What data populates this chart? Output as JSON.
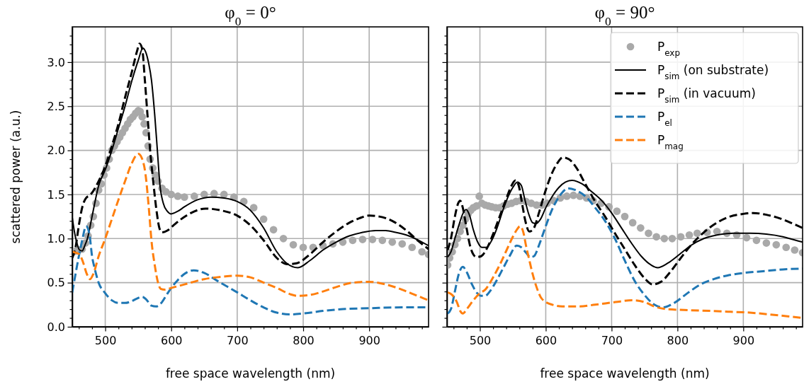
{
  "chart_data": [
    {
      "type": "line",
      "title": "φ$_{0}$ = 0°",
      "xlabel": "free space wavelength (nm)",
      "ylabel": "scattered power (a.u.)",
      "xlim": [
        450,
        990
      ],
      "ylim": [
        0,
        3.4
      ],
      "xticks": [
        {
          "value": 460,
          "label": null
        },
        {
          "value": 480,
          "label": null
        },
        500,
        {
          "value": 520,
          "label": null
        },
        {
          "value": 540,
          "label": null
        },
        {
          "value": 560,
          "label": null
        },
        {
          "value": 580,
          "label": null
        },
        600,
        {
          "value": 620,
          "label": null
        },
        {
          "value": 640,
          "label": null
        },
        {
          "value": 660,
          "label": null
        },
        {
          "value": 680,
          "label": null
        },
        700,
        {
          "value": 720,
          "label": null
        },
        {
          "value": 740,
          "label": null
        },
        {
          "value": 760,
          "label": null
        },
        {
          "value": 780,
          "label": null
        },
        800,
        {
          "value": 820,
          "label": null
        },
        {
          "value": 840,
          "label": null
        },
        {
          "value": 860,
          "label": null
        },
        {
          "value": 880,
          "label": null
        },
        900,
        {
          "value": 920,
          "label": null
        },
        {
          "value": 940,
          "label": null
        },
        {
          "value": 960,
          "label": null
        },
        {
          "value": 980,
          "label": null
        }
      ],
      "yticks": [
        {
          "value": 0,
          "label": "0.0"
        },
        {
          "value": 0.1,
          "label": null
        },
        {
          "value": 0.2,
          "label": null
        },
        {
          "value": 0.3,
          "label": null
        },
        {
          "value": 0.4,
          "label": null
        },
        0.5,
        {
          "value": 0.6,
          "label": null
        },
        {
          "value": 0.7,
          "label": null
        },
        {
          "value": 0.8,
          "label": null
        },
        {
          "value": 0.9,
          "label": null
        },
        {
          "value": 1,
          "label": "1.0"
        },
        {
          "value": 1.1,
          "label": null
        },
        {
          "value": 1.2,
          "label": null
        },
        {
          "value": 1.3,
          "label": null
        },
        {
          "value": 1.4,
          "label": null
        },
        1.5,
        {
          "value": 1.6,
          "label": null
        },
        {
          "value": 1.7,
          "label": null
        },
        {
          "value": 1.8,
          "label": null
        },
        {
          "value": 1.9,
          "label": null
        },
        {
          "value": 2,
          "label": "2.0"
        },
        {
          "value": 2.1,
          "label": null
        },
        {
          "value": 2.2,
          "label": null
        },
        {
          "value": 2.3,
          "label": null
        },
        {
          "value": 2.4,
          "label": null
        },
        2.5,
        {
          "value": 2.6,
          "label": null
        },
        {
          "value": 2.7,
          "label": null
        },
        {
          "value": 2.8,
          "label": null
        },
        {
          "value": 2.9,
          "label": null
        },
        {
          "value": 3,
          "label": "3.0"
        },
        {
          "value": 3.1,
          "label": null
        },
        {
          "value": 3.2,
          "label": null
        },
        {
          "value": 3.3,
          "label": null
        }
      ],
      "grid": true,
      "legend": false,
      "series": [
        {
          "type": "scatter",
          "marker": "circle",
          "color": "#a9a9a9",
          "x": [
            452,
            456,
            460,
            465,
            470,
            474,
            478,
            482,
            486,
            490,
            494,
            498,
            502,
            506,
            510,
            514,
            518,
            522,
            526,
            530,
            534,
            538,
            542,
            546,
            550,
            553,
            556,
            559,
            562,
            565,
            568,
            572,
            576,
            580,
            586,
            592,
            600,
            610,
            620,
            635,
            650,
            665,
            680,
            695,
            710,
            725,
            740,
            755,
            770,
            785,
            800,
            815,
            830,
            845,
            860,
            875,
            890,
            905,
            920,
            935,
            950,
            965,
            980,
            990
          ],
          "values": [
            0.85,
            0.86,
            0.87,
            0.88,
            0.95,
            1.03,
            1.15,
            1.25,
            1.4,
            1.55,
            1.62,
            1.72,
            1.8,
            1.9,
            2.0,
            2.05,
            2.1,
            2.15,
            2.2,
            2.25,
            2.3,
            2.35,
            2.38,
            2.42,
            2.45,
            2.44,
            2.38,
            2.3,
            2.2,
            2.05,
            1.9,
            1.8,
            1.72,
            1.65,
            1.57,
            1.53,
            1.5,
            1.48,
            1.47,
            1.48,
            1.5,
            1.51,
            1.5,
            1.47,
            1.42,
            1.35,
            1.22,
            1.1,
            1.0,
            0.93,
            0.9,
            0.9,
            0.92,
            0.94,
            0.96,
            0.98,
            0.99,
            0.99,
            0.98,
            0.96,
            0.94,
            0.9,
            0.85,
            0.82
          ]
        },
        {
          "type": "line",
          "line_style": "solid",
          "color": "#000000",
          "x": [
            450,
            453,
            457,
            461,
            465,
            469,
            473,
            480,
            490,
            500,
            510,
            520,
            530,
            540,
            550,
            557,
            562,
            566,
            570,
            575,
            579,
            583,
            588,
            594,
            600,
            610,
            620,
            640,
            660,
            680,
            700,
            720,
            740,
            760,
            775,
            792,
            810,
            830,
            850,
            870,
            890,
            910,
            925,
            940,
            960,
            975,
            990
          ],
          "values": [
            1.24,
            1.09,
            0.95,
            0.87,
            0.86,
            0.92,
            1.0,
            1.25,
            1.6,
            1.78,
            2.0,
            2.25,
            2.5,
            2.78,
            3.02,
            3.16,
            3.1,
            2.98,
            2.8,
            2.4,
            2.0,
            1.6,
            1.4,
            1.31,
            1.28,
            1.31,
            1.36,
            1.44,
            1.47,
            1.46,
            1.42,
            1.32,
            1.12,
            0.85,
            0.72,
            0.67,
            0.75,
            0.87,
            0.96,
            1.03,
            1.07,
            1.09,
            1.09,
            1.07,
            1.03,
            0.98,
            0.92
          ]
        },
        {
          "type": "line",
          "line_style": "dashed",
          "color": "#000000",
          "x": [
            450,
            455,
            460,
            465,
            470,
            478,
            490,
            500,
            510,
            520,
            530,
            540,
            548,
            552,
            556,
            560,
            564,
            568,
            572,
            578,
            582,
            586,
            594,
            602,
            615,
            630,
            652,
            675,
            700,
            720,
            740,
            760,
            776,
            790,
            810,
            830,
            850,
            870,
            885,
            900,
            915,
            935,
            955,
            975,
            990
          ],
          "values": [
            0.78,
            0.9,
            1.15,
            1.35,
            1.45,
            1.5,
            1.65,
            1.82,
            2.05,
            2.3,
            2.6,
            2.88,
            3.12,
            3.21,
            3.15,
            2.8,
            2.4,
            2.0,
            1.7,
            1.3,
            1.12,
            1.07,
            1.09,
            1.14,
            1.22,
            1.29,
            1.34,
            1.32,
            1.26,
            1.15,
            0.98,
            0.78,
            0.71,
            0.72,
            0.82,
            0.96,
            1.08,
            1.18,
            1.23,
            1.26,
            1.25,
            1.2,
            1.1,
            0.97,
            0.88
          ]
        },
        {
          "type": "line",
          "line_style": "dashed",
          "color": "#1f77b4",
          "x": [
            450,
            455,
            460,
            465,
            471,
            476,
            480,
            484,
            490,
            500,
            510,
            520,
            530,
            540,
            548,
            556,
            562,
            570,
            577,
            585,
            592,
            600,
            610,
            620,
            634,
            650,
            670,
            700,
            720,
            740,
            760,
            781,
            800,
            830,
            860,
            900,
            950,
            990
          ],
          "values": [
            0.39,
            0.6,
            0.8,
            0.98,
            1.14,
            1.05,
            0.8,
            0.66,
            0.5,
            0.38,
            0.3,
            0.27,
            0.27,
            0.29,
            0.32,
            0.34,
            0.31,
            0.24,
            0.23,
            0.27,
            0.35,
            0.44,
            0.53,
            0.6,
            0.64,
            0.61,
            0.52,
            0.39,
            0.3,
            0.22,
            0.16,
            0.14,
            0.15,
            0.18,
            0.2,
            0.21,
            0.22,
            0.22
          ]
        },
        {
          "type": "line",
          "line_style": "dashed",
          "color": "#ff7f0e",
          "x": [
            450,
            455,
            461,
            466,
            472,
            477,
            482,
            490,
            500,
            510,
            520,
            530,
            540,
            550,
            555,
            561,
            566,
            570,
            575,
            580,
            584,
            590,
            600,
            620,
            650,
            680,
            700,
            720,
            740,
            760,
            780,
            792,
            810,
            830,
            850,
            875,
            900,
            925,
            950,
            970,
            990
          ],
          "values": [
            0.85,
            0.84,
            0.82,
            0.74,
            0.6,
            0.54,
            0.6,
            0.8,
            1.0,
            1.22,
            1.44,
            1.65,
            1.85,
            1.96,
            1.92,
            1.73,
            1.35,
            0.98,
            0.7,
            0.5,
            0.43,
            0.42,
            0.44,
            0.48,
            0.54,
            0.57,
            0.58,
            0.56,
            0.5,
            0.44,
            0.37,
            0.35,
            0.36,
            0.4,
            0.45,
            0.5,
            0.51,
            0.48,
            0.42,
            0.36,
            0.3
          ]
        }
      ]
    },
    {
      "type": "line",
      "title": "φ$_{0}$ = 90°",
      "xlabel": "free space wavelength (nm)",
      "xlim": [
        450,
        990
      ],
      "ylim": [
        0,
        3.4
      ],
      "xticks": [
        {
          "value": 460,
          "label": null
        },
        {
          "value": 480,
          "label": null
        },
        500,
        {
          "value": 520,
          "label": null
        },
        {
          "value": 540,
          "label": null
        },
        {
          "value": 560,
          "label": null
        },
        {
          "value": 580,
          "label": null
        },
        600,
        {
          "value": 620,
          "label": null
        },
        {
          "value": 640,
          "label": null
        },
        {
          "value": 660,
          "label": null
        },
        {
          "value": 680,
          "label": null
        },
        700,
        {
          "value": 720,
          "label": null
        },
        {
          "value": 740,
          "label": null
        },
        {
          "value": 760,
          "label": null
        },
        {
          "value": 780,
          "label": null
        },
        800,
        {
          "value": 820,
          "label": null
        },
        {
          "value": 840,
          "label": null
        },
        {
          "value": 860,
          "label": null
        },
        {
          "value": 880,
          "label": null
        },
        900,
        {
          "value": 920,
          "label": null
        },
        {
          "value": 940,
          "label": null
        },
        {
          "value": 960,
          "label": null
        },
        {
          "value": 980,
          "label": null
        }
      ],
      "yticks": [
        0,
        {
          "value": 0.1,
          "label": null
        },
        {
          "value": 0.2,
          "label": null
        },
        {
          "value": 0.3,
          "label": null
        },
        {
          "value": 0.4,
          "label": null
        },
        0.5,
        {
          "value": 0.6,
          "label": null
        },
        {
          "value": 0.7,
          "label": null
        },
        {
          "value": 0.8,
          "label": null
        },
        {
          "value": 0.9,
          "label": null
        },
        1,
        {
          "value": 1.1,
          "label": null
        },
        {
          "value": 1.2,
          "label": null
        },
        {
          "value": 1.3,
          "label": null
        },
        {
          "value": 1.4,
          "label": null
        },
        1.5,
        {
          "value": 1.6,
          "label": null
        },
        {
          "value": 1.7,
          "label": null
        },
        {
          "value": 1.8,
          "label": null
        },
        {
          "value": 1.9,
          "label": null
        },
        2,
        {
          "value": 2.1,
          "label": null
        },
        {
          "value": 2.2,
          "label": null
        },
        {
          "value": 2.3,
          "label": null
        },
        {
          "value": 2.4,
          "label": null
        },
        2.5,
        {
          "value": 2.6,
          "label": null
        },
        {
          "value": 2.7,
          "label": null
        },
        {
          "value": 2.8,
          "label": null
        },
        {
          "value": 2.9,
          "label": null
        },
        3,
        {
          "value": 3.1,
          "label": null
        },
        {
          "value": 3.2,
          "label": null
        },
        {
          "value": 3.3,
          "label": null
        }
      ],
      "tick_labels": "x",
      "grid": true,
      "legend": "top right",
      "series": [
        {
          "type": "scatter",
          "name": "P$_{exp}$",
          "marker": "circle",
          "color": "#a9a9a9",
          "x": [
            451,
            454,
            458,
            462,
            466,
            470,
            474,
            478,
            482,
            486,
            490,
            495,
            499,
            503,
            508,
            513,
            518,
            524,
            530,
            536,
            542,
            548,
            555,
            562,
            570,
            578,
            586,
            594,
            602,
            612,
            622,
            632,
            642,
            652,
            662,
            672,
            684,
            696,
            708,
            720,
            732,
            744,
            756,
            768,
            780,
            792,
            805,
            818,
            830,
            845,
            860,
            875,
            890,
            905,
            920,
            935,
            950,
            965,
            978,
            990
          ],
          "values": [
            0.7,
            0.78,
            0.85,
            0.93,
            1.0,
            1.08,
            1.15,
            1.22,
            1.28,
            1.32,
            1.35,
            1.37,
            1.48,
            1.4,
            1.38,
            1.37,
            1.36,
            1.35,
            1.35,
            1.37,
            1.39,
            1.4,
            1.42,
            1.43,
            1.42,
            1.4,
            1.38,
            1.38,
            1.4,
            1.43,
            1.46,
            1.48,
            1.49,
            1.48,
            1.46,
            1.43,
            1.4,
            1.36,
            1.31,
            1.25,
            1.18,
            1.12,
            1.06,
            1.02,
            1.0,
            1.0,
            1.02,
            1.04,
            1.06,
            1.07,
            1.08,
            1.06,
            1.04,
            1.01,
            0.98,
            0.95,
            0.93,
            0.9,
            0.87,
            0.84
          ]
        },
        {
          "type": "line",
          "name": "P$_{sim}$ (on substrate)",
          "line_style": "solid",
          "color": "#000000",
          "x": [
            451,
            456,
            462,
            468,
            474,
            479,
            484,
            490,
            496,
            503,
            510,
            518,
            526,
            534,
            542,
            550,
            557,
            563,
            568,
            574,
            580,
            585,
            592,
            600,
            610,
            620,
            630,
            640,
            655,
            670,
            685,
            700,
            715,
            730,
            745,
            760,
            770,
            785,
            803,
            820,
            840,
            860,
            885,
            910,
            935,
            960,
            975,
            990
          ],
          "values": [
            0.79,
            0.85,
            1.0,
            1.15,
            1.28,
            1.33,
            1.27,
            1.1,
            0.97,
            0.9,
            0.9,
            0.98,
            1.12,
            1.3,
            1.46,
            1.58,
            1.64,
            1.6,
            1.45,
            1.28,
            1.18,
            1.17,
            1.22,
            1.35,
            1.48,
            1.58,
            1.64,
            1.66,
            1.62,
            1.53,
            1.43,
            1.29,
            1.12,
            0.95,
            0.8,
            0.7,
            0.67,
            0.72,
            0.82,
            0.92,
            1.0,
            1.04,
            1.06,
            1.06,
            1.05,
            1.02,
            0.99,
            0.96
          ]
        },
        {
          "type": "line",
          "name": "P$_{sim}$ (in vacuum)",
          "line_style": "dashed",
          "color": "#000000",
          "x": [
            451,
            456,
            462,
            467,
            470,
            474,
            479,
            485,
            490,
            495,
            502,
            510,
            520,
            530,
            540,
            548,
            554,
            559,
            564,
            569,
            575,
            582,
            590,
            600,
            610,
            618,
            626,
            635,
            645,
            660,
            675,
            690,
            705,
            720,
            735,
            750,
            762,
            775,
            790,
            803,
            820,
            840,
            860,
            880,
            900,
            915,
            935,
            955,
            975,
            990
          ],
          "values": [
            0.87,
            1.0,
            1.25,
            1.4,
            1.43,
            1.35,
            1.15,
            0.92,
            0.82,
            0.79,
            0.8,
            0.88,
            1.05,
            1.25,
            1.45,
            1.6,
            1.66,
            1.6,
            1.4,
            1.2,
            1.08,
            1.12,
            1.3,
            1.55,
            1.75,
            1.86,
            1.92,
            1.9,
            1.82,
            1.62,
            1.42,
            1.25,
            1.06,
            0.88,
            0.7,
            0.55,
            0.48,
            0.51,
            0.63,
            0.76,
            0.92,
            1.07,
            1.18,
            1.25,
            1.28,
            1.29,
            1.27,
            1.23,
            1.17,
            1.12
          ]
        },
        {
          "type": "line",
          "name": "P$_{el}$",
          "line_style": "dashed",
          "color": "#1f77b4",
          "x": [
            451,
            456,
            462,
            468,
            474,
            480,
            488,
            496,
            502,
            508,
            515,
            525,
            535,
            545,
            556,
            563,
            570,
            577,
            582,
            590,
            599,
            608,
            618,
            626,
            633,
            645,
            660,
            675,
            690,
            705,
            720,
            735,
            750,
            765,
            778,
            795,
            815,
            835,
            855,
            875,
            900,
            930,
            960,
            990
          ],
          "values": [
            0.15,
            0.2,
            0.4,
            0.6,
            0.68,
            0.62,
            0.48,
            0.38,
            0.35,
            0.35,
            0.4,
            0.52,
            0.66,
            0.8,
            0.92,
            0.9,
            0.84,
            0.79,
            0.8,
            0.93,
            1.12,
            1.3,
            1.45,
            1.53,
            1.57,
            1.55,
            1.48,
            1.35,
            1.2,
            1.0,
            0.75,
            0.52,
            0.36,
            0.25,
            0.22,
            0.27,
            0.38,
            0.48,
            0.54,
            0.58,
            0.61,
            0.63,
            0.65,
            0.66
          ]
        },
        {
          "type": "line",
          "name": "P$_{mag}$",
          "line_style": "dashed",
          "color": "#ff7f0e",
          "x": [
            451,
            458,
            465,
            470,
            474,
            480,
            490,
            500,
            508,
            520,
            530,
            540,
            550,
            556,
            561,
            566,
            570,
            574,
            580,
            586,
            592,
            600,
            610,
            625,
            650,
            675,
            706,
            731,
            750,
            765,
            784,
            810,
            850,
            880,
            910,
            940,
            965,
            990
          ],
          "values": [
            0.39,
            0.36,
            0.28,
            0.18,
            0.15,
            0.2,
            0.3,
            0.38,
            0.42,
            0.56,
            0.7,
            0.86,
            1.02,
            1.1,
            1.14,
            1.07,
            0.92,
            0.79,
            0.6,
            0.45,
            0.34,
            0.28,
            0.25,
            0.23,
            0.23,
            0.25,
            0.28,
            0.3,
            0.28,
            0.23,
            0.2,
            0.19,
            0.18,
            0.17,
            0.16,
            0.14,
            0.12,
            0.1
          ]
        }
      ]
    }
  ]
}
